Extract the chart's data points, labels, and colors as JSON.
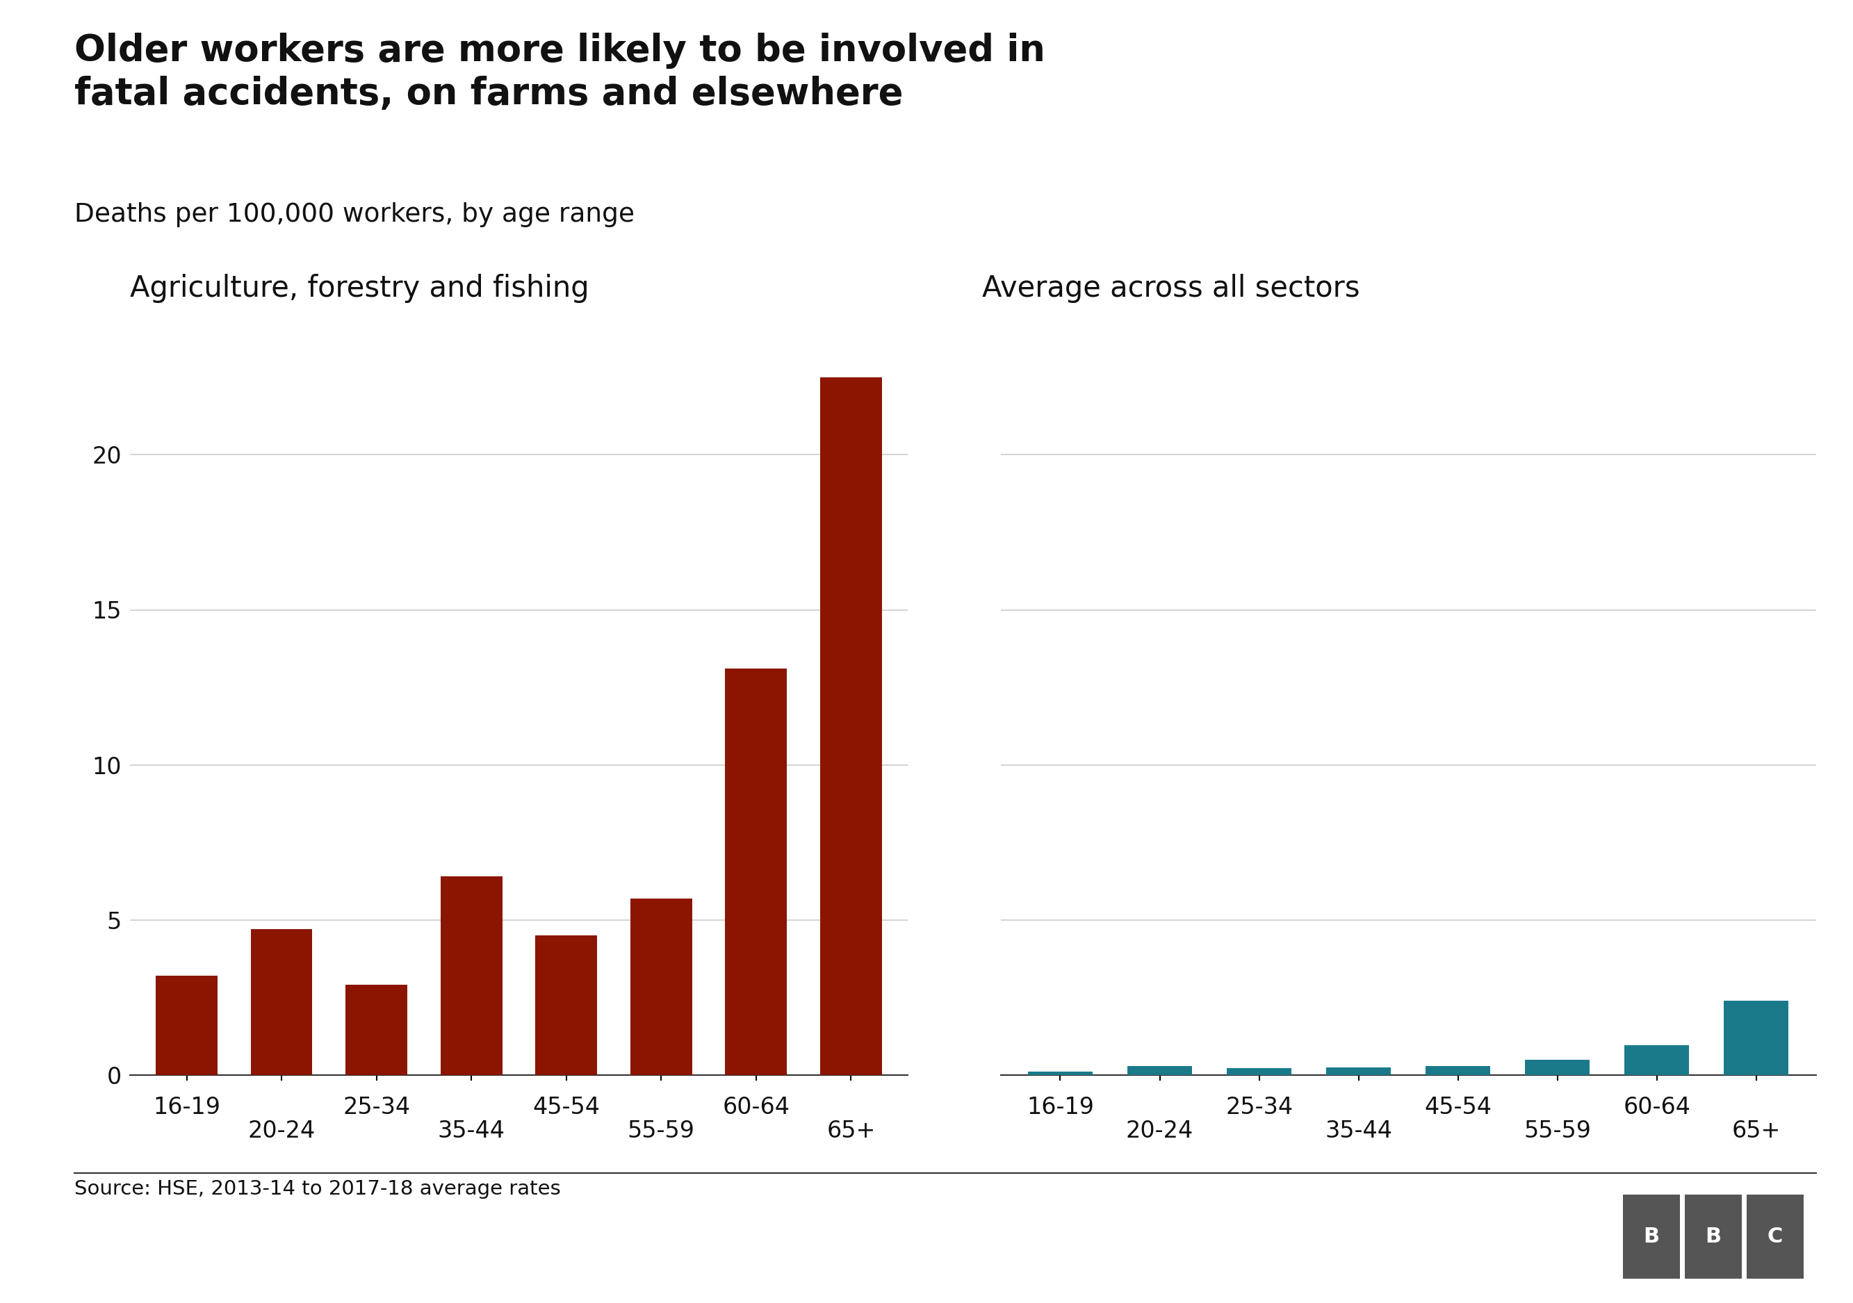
{
  "title": "Older workers are more likely to be involved in\nfatal accidents, on farms and elsewhere",
  "subtitle": "Deaths per 100,000 workers, by age range",
  "source": "Source: HSE, 2013-14 to 2017-18 average rates",
  "left_title": "Agriculture, forestry and fishing",
  "right_title": "Average across all sectors",
  "age_labels": [
    "16-19",
    "20-24",
    "25-34",
    "35-44",
    "45-54",
    "55-59",
    "60-64",
    "65+"
  ],
  "left_values": [
    3.2,
    4.7,
    2.9,
    6.4,
    4.5,
    5.7,
    13.1,
    22.5
  ],
  "right_values": [
    0.12,
    0.28,
    0.22,
    0.25,
    0.28,
    0.48,
    0.95,
    2.4
  ],
  "left_color": "#8B1500",
  "right_color": "#1B7A8A",
  "background_color": "#FFFFFF",
  "shared_ylim": [
    0,
    25
  ],
  "shared_yticks": [
    0,
    5,
    10,
    15,
    20
  ],
  "grid_color": "#CCCCCC",
  "title_fontsize": 38,
  "subtitle_fontsize": 27,
  "panel_title_fontsize": 30,
  "tick_fontsize": 24,
  "source_fontsize": 21,
  "bar_width": 0.65,
  "tick_labels_top": [
    "16-19",
    "",
    "25-34",
    "",
    "45-54",
    "",
    "60-64",
    ""
  ],
  "tick_labels_bot": [
    "",
    "20-24",
    "",
    "35-44",
    "",
    "55-59",
    "",
    "65+"
  ]
}
